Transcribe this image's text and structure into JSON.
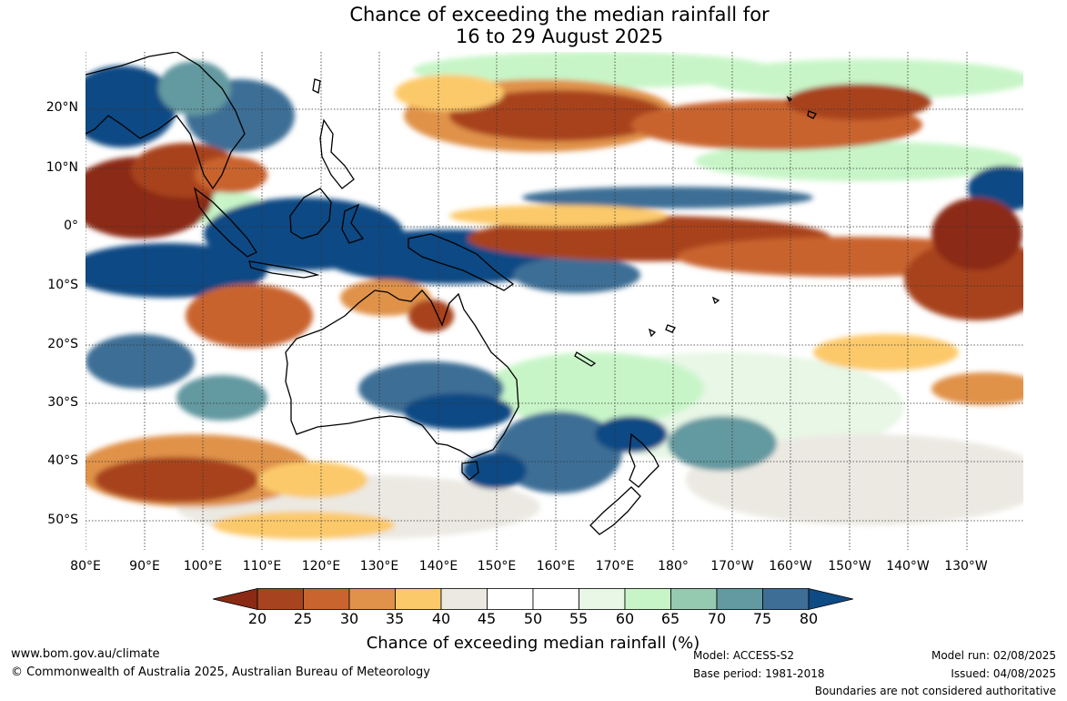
{
  "title": {
    "line1": "Chance of exceeding the median rainfall for",
    "line2": "16 to 29 August 2025"
  },
  "map": {
    "lat_labels": [
      "20°N",
      "10°N",
      "0°",
      "10°S",
      "20°S",
      "30°S",
      "40°S",
      "50°S"
    ],
    "lon_labels": [
      "80°E",
      "90°E",
      "100°E",
      "110°E",
      "120°E",
      "130°E",
      "140°E",
      "150°E",
      "160°E",
      "170°E",
      "180°",
      "170°W",
      "160°W",
      "150°W",
      "140°W",
      "130°W"
    ]
  },
  "colorbar": {
    "title": "Chance of exceeding median rainfall (%)",
    "ticks": [
      "20",
      "25",
      "30",
      "35",
      "40",
      "45",
      "50",
      "55",
      "60",
      "65",
      "70",
      "75",
      "80"
    ],
    "colors": [
      "#8b2a14",
      "#a8431f",
      "#c9642f",
      "#e0924a",
      "#fcc96a",
      "#ebe9e2",
      "#ffffff",
      "#ffffff",
      "#e8f7e6",
      "#c8f5c8",
      "#95c9b0",
      "#6399a0",
      "#3e6e95",
      "#0e4a84"
    ]
  },
  "footer": {
    "website": "www.bom.gov.au/climate",
    "copyright": "© Commonwealth of Australia 2025, Australian Bureau of Meteorology",
    "model": "Model: ACCESS-S2",
    "base_period": "Base period: 1981-2018",
    "model_run": "Model run: 02/08/2025",
    "issued": "Issued: 04/08/2025",
    "disclaimer": "Boundaries are not considered authoritative"
  }
}
